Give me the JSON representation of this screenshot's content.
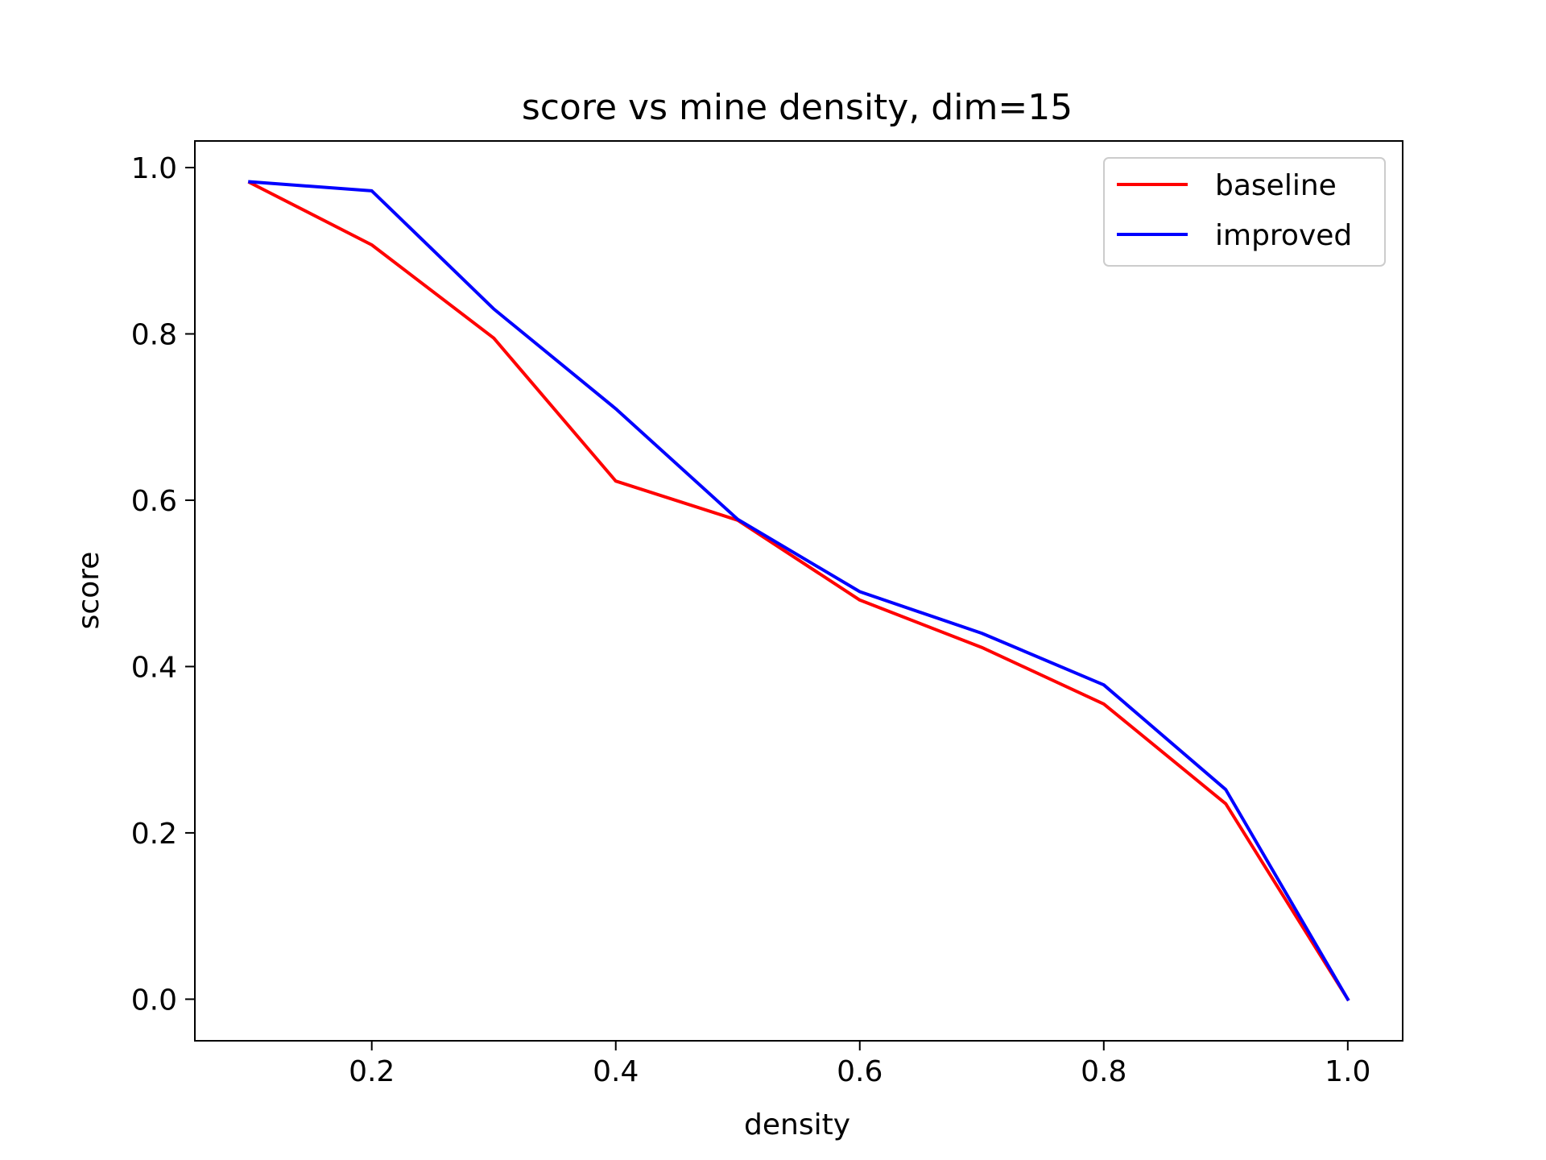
{
  "chart_data": {
    "type": "line",
    "title": "score vs mine density, dim=15",
    "xlabel": "density",
    "ylabel": "score",
    "xlim": [
      0.055,
      1.045
    ],
    "ylim": [
      -0.05,
      1.032
    ],
    "x_ticks": [
      0.2,
      0.4,
      0.6,
      0.8,
      1.0
    ],
    "y_ticks": [
      0.0,
      0.2,
      0.4,
      0.6,
      0.8,
      1.0
    ],
    "x_tick_labels": [
      "0.2",
      "0.4",
      "0.6",
      "0.8",
      "1.0"
    ],
    "y_tick_labels": [
      "0.0",
      "0.2",
      "0.4",
      "0.6",
      "0.8",
      "1.0"
    ],
    "grid": false,
    "legend_position": "top-right",
    "x": [
      0.1,
      0.2,
      0.3,
      0.4,
      0.5,
      0.6,
      0.7,
      0.8,
      0.9,
      1.0
    ],
    "series": [
      {
        "name": "baseline",
        "color": "#ff0000",
        "values": [
          0.982,
          0.907,
          0.795,
          0.623,
          0.576,
          0.48,
          0.423,
          0.355,
          0.235,
          0.0
        ]
      },
      {
        "name": "improved",
        "color": "#0000ff",
        "values": [
          0.983,
          0.972,
          0.83,
          0.71,
          0.577,
          0.49,
          0.44,
          0.378,
          0.252,
          0.0
        ]
      }
    ]
  }
}
